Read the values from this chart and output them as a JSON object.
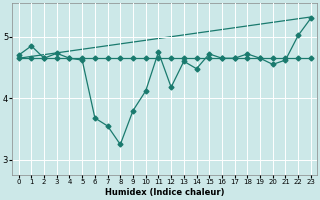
{
  "xlabel": "Humidex (Indice chaleur)",
  "ylabel": "",
  "bg_color": "#cce8e8",
  "line_color": "#1a7a6e",
  "grid_color": "#ffffff",
  "xlim": [
    -0.5,
    23.5
  ],
  "ylim": [
    2.75,
    5.55
  ],
  "yticks": [
    3,
    4,
    5
  ],
  "xticks": [
    0,
    1,
    2,
    3,
    4,
    5,
    6,
    7,
    8,
    9,
    10,
    11,
    12,
    13,
    14,
    15,
    16,
    17,
    18,
    19,
    20,
    21,
    22,
    23
  ],
  "line1_x": [
    0,
    1,
    2,
    3,
    4,
    5,
    6,
    7,
    8,
    9,
    10,
    11,
    12,
    13,
    14,
    15,
    16,
    17,
    18,
    19,
    20,
    21,
    22,
    23
  ],
  "line1_y": [
    4.7,
    4.85,
    4.65,
    4.73,
    4.65,
    4.62,
    3.68,
    3.55,
    3.25,
    3.8,
    4.12,
    4.75,
    4.18,
    4.6,
    4.48,
    4.72,
    4.65,
    4.65,
    4.72,
    4.65,
    4.55,
    4.62,
    5.02,
    5.3
  ],
  "line2_x": [
    0,
    1,
    2,
    3,
    4,
    5,
    6,
    7,
    8,
    9,
    10,
    11,
    12,
    13,
    14,
    15,
    16,
    17,
    18,
    19,
    20,
    21,
    22,
    23
  ],
  "line2_y": [
    4.65,
    4.65,
    4.65,
    4.65,
    4.65,
    4.65,
    4.65,
    4.65,
    4.65,
    4.65,
    4.65,
    4.65,
    4.65,
    4.65,
    4.65,
    4.65,
    4.65,
    4.65,
    4.65,
    4.65,
    4.65,
    4.65,
    4.65,
    4.65
  ],
  "line3_x": [
    0,
    23
  ],
  "line3_y": [
    4.65,
    5.32
  ],
  "marker": "D",
  "markersize": 2.5,
  "linewidth": 0.9
}
